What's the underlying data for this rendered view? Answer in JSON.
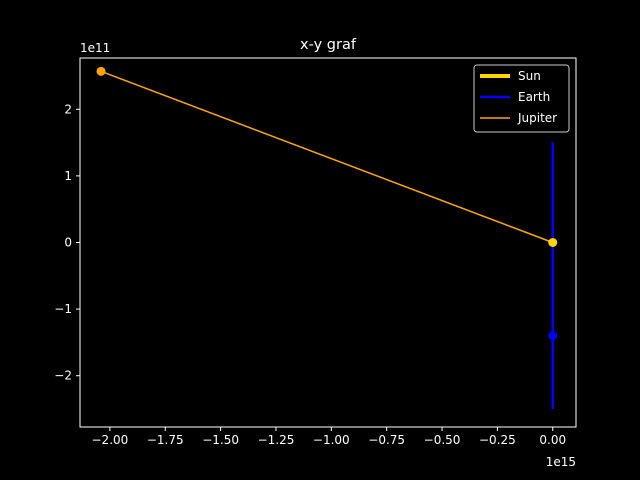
{
  "chart_data": {
    "type": "line",
    "title": "x-y graf",
    "xlabel": "",
    "ylabel": "",
    "x_offset_label": "1e15",
    "y_offset_label": "1e11",
    "xlim": [
      -2.135,
      0.105
    ],
    "ylim": [
      -2.77,
      2.77
    ],
    "x_ticks": [
      -2.0,
      -1.75,
      -1.5,
      -1.25,
      -1.0,
      -0.75,
      -0.5,
      -0.25,
      0.0
    ],
    "x_tick_labels": [
      "−2.00",
      "−1.75",
      "−1.50",
      "−1.25",
      "−1.00",
      "−0.75",
      "−0.50",
      "−0.25",
      "0.00"
    ],
    "y_ticks": [
      -2,
      -1,
      0,
      1,
      2
    ],
    "y_tick_labels": [
      "−2",
      "−1",
      "0",
      "1",
      "2"
    ],
    "grid": false,
    "legend_position": "top-right",
    "series": [
      {
        "name": "Sun",
        "color": "#FFD700",
        "x": [
          0.0,
          0.0
        ],
        "y": [
          0.0,
          0.0
        ],
        "end_point": [
          0.0,
          0.0
        ]
      },
      {
        "name": "Earth",
        "color": "#0000FF",
        "x": [
          0.0,
          0.0
        ],
        "y": [
          -2.5,
          1.5
        ],
        "end_point": [
          0.0,
          -1.4
        ]
      },
      {
        "name": "Jupiter",
        "color": "#FFA500",
        "x": [
          -2.04,
          0.0
        ],
        "y": [
          2.57,
          0.0
        ],
        "end_point": [
          -2.04,
          2.57
        ]
      }
    ]
  }
}
